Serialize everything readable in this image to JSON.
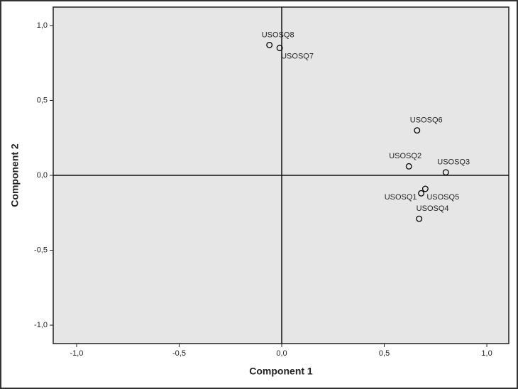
{
  "chart_data": {
    "type": "scatter",
    "x_label": "Component 1",
    "y_label": "Component 2",
    "point_labels": [
      "USOSQ8",
      "USOSQ7",
      "USOSQ6",
      "USOSQ2",
      "USOSQ3",
      "USOSQ5",
      "USOSQ1",
      "USOSQ4"
    ],
    "x": [
      -0.06,
      -0.01,
      0.66,
      0.62,
      0.8,
      0.7,
      0.68,
      0.67
    ],
    "values": [
      0.87,
      0.85,
      0.3,
      0.06,
      0.02,
      -0.09,
      -0.12,
      -0.29
    ],
    "xlim": [
      -1.114,
      1.107
    ],
    "ylim": [
      -1.123,
      1.123
    ],
    "xticks": [
      {
        "value": -1,
        "label": "-1,0"
      },
      {
        "value": -0.5,
        "label": "-0,5"
      },
      {
        "value": 0,
        "label": "0,0"
      },
      {
        "value": 0.5,
        "label": "0,5"
      },
      {
        "value": 1,
        "label": "1,0"
      }
    ],
    "yticks": [
      {
        "value": -1,
        "label": "-1,0"
      },
      {
        "value": -0.5,
        "label": "-0,5"
      },
      {
        "value": 0,
        "label": "0,0"
      },
      {
        "value": 0.5,
        "label": "0,5"
      },
      {
        "value": 1,
        "label": "1,0"
      }
    ],
    "reference_lines": true,
    "marker_color": "#000000",
    "plot_background": "#e6e6e6"
  }
}
